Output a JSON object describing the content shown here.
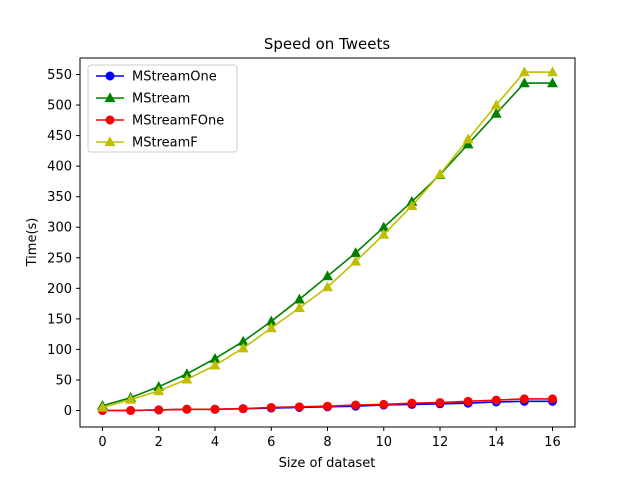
{
  "chart_data": {
    "type": "line",
    "title": "Speed on Tweets",
    "xlabel": "Size of dataset",
    "ylabel": "Time(s)",
    "xlim": [
      -0.8,
      16.8
    ],
    "ylim": [
      -27,
      577
    ],
    "xticks": [
      0,
      2,
      4,
      6,
      8,
      10,
      12,
      14,
      16
    ],
    "yticks": [
      0,
      50,
      100,
      150,
      200,
      250,
      300,
      350,
      400,
      450,
      500,
      550
    ],
    "grid": false,
    "legend_position": "upper-left",
    "x": [
      0,
      1,
      2,
      3,
      4,
      5,
      6,
      7,
      8,
      9,
      10,
      11,
      12,
      13,
      14,
      15,
      16
    ],
    "series": [
      {
        "name": "MStreamOne",
        "color": "#0000ff",
        "marker": "circle",
        "values": [
          0,
          0,
          1,
          2,
          2,
          3,
          4,
          5,
          6,
          7,
          9,
          10,
          11,
          12,
          14,
          15,
          15
        ]
      },
      {
        "name": "MStream",
        "color": "#008000",
        "marker": "triangle",
        "values": [
          8,
          21,
          39,
          60,
          85,
          113,
          146,
          182,
          220,
          258,
          300,
          342,
          386,
          436,
          486,
          536,
          536
        ]
      },
      {
        "name": "MStreamFOne",
        "color": "#ff0000",
        "marker": "circle",
        "values": [
          0,
          0,
          1,
          2,
          2,
          3,
          5,
          6,
          7,
          9,
          10,
          12,
          13,
          15,
          17,
          19,
          19
        ]
      },
      {
        "name": "MStreamF",
        "color": "#bfbf00",
        "marker": "triangle",
        "values": [
          5,
          18,
          32,
          51,
          74,
          102,
          135,
          168,
          202,
          244,
          288,
          335,
          387,
          444,
          500,
          554,
          554
        ]
      }
    ]
  }
}
